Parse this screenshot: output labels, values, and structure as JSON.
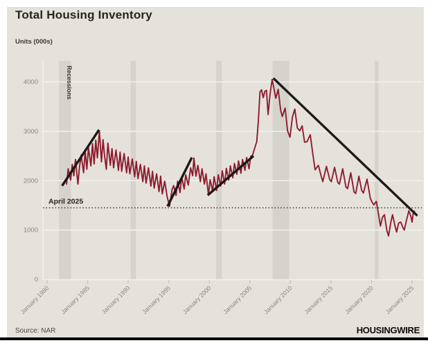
{
  "page": {
    "title": "Total Housing Inventory",
    "units_label": "Units (000s)",
    "source": "Source: NAR",
    "brand": "HOUSINGWIRE"
  },
  "colors": {
    "card_background": "#e5e2dc",
    "recession_band": "#d6d3cd",
    "gridline": "#f3f1ed",
    "tick": "#c6c3bd",
    "axis_text": "#8a8781",
    "series_red": "#8e1b2e",
    "trend_black": "#1b1a18",
    "reference_dotted": "#43413d",
    "annotation_text": "#26241f",
    "bottom_bar": "#000000"
  },
  "chart_data": {
    "type": "line",
    "title": "Total Housing Inventory",
    "ylabel": "Units (000s)",
    "xlabel": "",
    "x_domain": [
      1980,
      2025.5
    ],
    "ylim": [
      0,
      4400
    ],
    "grid": "horizontal",
    "legend": "none",
    "y_ticks": [
      "0",
      "1000",
      "2000",
      "3000",
      "4000"
    ],
    "y_tick_values": [
      0,
      1000,
      2000,
      3000,
      4000
    ],
    "x_ticks": [
      {
        "year": 1980,
        "label": "January 1980"
      },
      {
        "year": 1985,
        "label": "January 1985"
      },
      {
        "year": 1990,
        "label": "January 1990"
      },
      {
        "year": 1995,
        "label": "January 1995"
      },
      {
        "year": 2000,
        "label": "January 2000"
      },
      {
        "year": 2005,
        "label": "January 2005"
      },
      {
        "year": 2010,
        "label": "January 2010"
      },
      {
        "year": 2015,
        "label": "January 2015"
      },
      {
        "year": 2020,
        "label": "January 2020"
      },
      {
        "year": 2025,
        "label": "January 2025"
      }
    ],
    "recessions_label": "Recessions",
    "recession_bands": [
      [
        1981.45,
        1982.95
      ],
      [
        1990.3,
        1990.95
      ],
      [
        2000.85,
        2001.55
      ],
      [
        2007.8,
        2009.85
      ],
      [
        2020.4,
        2020.85
      ]
    ],
    "reference_line": {
      "label": "April 2025",
      "value": 1450
    },
    "trend_lines": [
      {
        "name": "1982-1986 uptrend",
        "from": [
          1981.85,
          1895
        ],
        "to": [
          1986.4,
          3030
        ]
      },
      {
        "name": "1995-1998 uptrend",
        "from": [
          1994.85,
          1480
        ],
        "to": [
          1997.85,
          2470
        ]
      },
      {
        "name": "2000-2005 uptrend",
        "from": [
          1999.8,
          1705
        ],
        "to": [
          2005.45,
          2500
        ]
      },
      {
        "name": "2007-2025 downtrend",
        "from": [
          2007.9,
          4075
        ],
        "to": [
          2025.65,
          1290
        ]
      }
    ],
    "series": [
      {
        "name": "Total housing inventory (000s)",
        "points": [
          [
            1982.4,
            1930
          ],
          [
            1982.6,
            2240
          ],
          [
            1982.9,
            2010
          ],
          [
            1983.1,
            2330
          ],
          [
            1983.3,
            2100
          ],
          [
            1983.5,
            2430
          ],
          [
            1983.8,
            1930
          ],
          [
            1984.0,
            2280
          ],
          [
            1984.2,
            2520
          ],
          [
            1984.5,
            2160
          ],
          [
            1984.7,
            2600
          ],
          [
            1984.9,
            2230
          ],
          [
            1985.1,
            2670
          ],
          [
            1985.4,
            2300
          ],
          [
            1985.6,
            2750
          ],
          [
            1985.8,
            2340
          ],
          [
            1986.0,
            2820
          ],
          [
            1986.2,
            2460
          ],
          [
            1986.45,
            3010
          ],
          [
            1986.7,
            2380
          ],
          [
            1986.9,
            2830
          ],
          [
            1987.1,
            2490
          ],
          [
            1987.3,
            2230
          ],
          [
            1987.5,
            2760
          ],
          [
            1987.8,
            2310
          ],
          [
            1988.0,
            2650
          ],
          [
            1988.2,
            2260
          ],
          [
            1988.5,
            2620
          ],
          [
            1988.8,
            2210
          ],
          [
            1989.0,
            2580
          ],
          [
            1989.2,
            2190
          ],
          [
            1989.5,
            2550
          ],
          [
            1989.8,
            2160
          ],
          [
            1990.0,
            2480
          ],
          [
            1990.2,
            2140
          ],
          [
            1990.5,
            2440
          ],
          [
            1990.8,
            2080
          ],
          [
            1991.0,
            2390
          ],
          [
            1991.2,
            2040
          ],
          [
            1991.5,
            2330
          ],
          [
            1991.8,
            1980
          ],
          [
            1992.0,
            2300
          ],
          [
            1992.2,
            1950
          ],
          [
            1992.5,
            2260
          ],
          [
            1992.8,
            1890
          ],
          [
            1993.0,
            2190
          ],
          [
            1993.2,
            1850
          ],
          [
            1993.5,
            2140
          ],
          [
            1993.8,
            1780
          ],
          [
            1994.0,
            2090
          ],
          [
            1994.2,
            1730
          ],
          [
            1994.5,
            1990
          ],
          [
            1994.8,
            1680
          ],
          [
            1995.1,
            1480
          ],
          [
            1995.4,
            1810
          ],
          [
            1995.6,
            1900
          ],
          [
            1995.9,
            1700
          ],
          [
            1996.1,
            1990
          ],
          [
            1996.4,
            1760
          ],
          [
            1996.6,
            2080
          ],
          [
            1996.9,
            1830
          ],
          [
            1997.1,
            2120
          ],
          [
            1997.4,
            1910
          ],
          [
            1997.7,
            2260
          ],
          [
            1997.95,
            2100
          ],
          [
            1998.1,
            2460
          ],
          [
            1998.35,
            2090
          ],
          [
            1998.6,
            2310
          ],
          [
            1998.9,
            1980
          ],
          [
            1999.1,
            2240
          ],
          [
            1999.4,
            1930
          ],
          [
            1999.6,
            2140
          ],
          [
            1999.9,
            1710
          ],
          [
            2000.1,
            2020
          ],
          [
            2000.4,
            1790
          ],
          [
            2000.6,
            2080
          ],
          [
            2000.9,
            1800
          ],
          [
            2001.1,
            2120
          ],
          [
            2001.4,
            1890
          ],
          [
            2001.6,
            2200
          ],
          [
            2001.9,
            1930
          ],
          [
            2002.1,
            2250
          ],
          [
            2002.4,
            2010
          ],
          [
            2002.6,
            2300
          ],
          [
            2002.9,
            2060
          ],
          [
            2003.1,
            2350
          ],
          [
            2003.4,
            2130
          ],
          [
            2003.6,
            2400
          ],
          [
            2003.9,
            2150
          ],
          [
            2004.1,
            2430
          ],
          [
            2004.4,
            2210
          ],
          [
            2004.6,
            2470
          ],
          [
            2004.9,
            2240
          ],
          [
            2005.1,
            2490
          ],
          [
            2005.35,
            2520
          ],
          [
            2005.6,
            2660
          ],
          [
            2005.85,
            2790
          ],
          [
            2006.05,
            3200
          ],
          [
            2006.25,
            3800
          ],
          [
            2006.45,
            3840
          ],
          [
            2006.65,
            3680
          ],
          [
            2006.85,
            3810
          ],
          [
            2007.05,
            3830
          ],
          [
            2007.25,
            3340
          ],
          [
            2007.5,
            3760
          ],
          [
            2007.75,
            4050
          ],
          [
            2007.95,
            3890
          ],
          [
            2008.2,
            3670
          ],
          [
            2008.5,
            3850
          ],
          [
            2008.8,
            3430
          ],
          [
            2009.0,
            3300
          ],
          [
            2009.35,
            3470
          ],
          [
            2009.65,
            3010
          ],
          [
            2009.95,
            2880
          ],
          [
            2010.25,
            3290
          ],
          [
            2010.55,
            3450
          ],
          [
            2010.85,
            3070
          ],
          [
            2011.15,
            3010
          ],
          [
            2011.45,
            3110
          ],
          [
            2011.75,
            2780
          ],
          [
            2012.05,
            2790
          ],
          [
            2012.45,
            2930
          ],
          [
            2012.75,
            2560
          ],
          [
            2013.05,
            2220
          ],
          [
            2013.45,
            2310
          ],
          [
            2013.8,
            2090
          ],
          [
            2014.0,
            1980
          ],
          [
            2014.45,
            2290
          ],
          [
            2014.85,
            2020
          ],
          [
            2015.05,
            1980
          ],
          [
            2015.45,
            2270
          ],
          [
            2015.85,
            1960
          ],
          [
            2016.05,
            1930
          ],
          [
            2016.45,
            2240
          ],
          [
            2016.85,
            1870
          ],
          [
            2017.05,
            1840
          ],
          [
            2017.45,
            2160
          ],
          [
            2017.85,
            1770
          ],
          [
            2018.05,
            1740
          ],
          [
            2018.45,
            2090
          ],
          [
            2018.8,
            1800
          ],
          [
            2019.0,
            1750
          ],
          [
            2019.45,
            2030
          ],
          [
            2019.85,
            1650
          ],
          [
            2020.05,
            1570
          ],
          [
            2020.3,
            1510
          ],
          [
            2020.6,
            1580
          ],
          [
            2020.9,
            1290
          ],
          [
            2021.1,
            1080
          ],
          [
            2021.35,
            1260
          ],
          [
            2021.6,
            1310
          ],
          [
            2021.9,
            990
          ],
          [
            2022.1,
            880
          ],
          [
            2022.4,
            1170
          ],
          [
            2022.6,
            1310
          ],
          [
            2022.9,
            1080
          ],
          [
            2023.1,
            960
          ],
          [
            2023.35,
            1140
          ],
          [
            2023.6,
            1160
          ],
          [
            2023.9,
            1040
          ],
          [
            2024.05,
            1000
          ],
          [
            2024.3,
            1190
          ],
          [
            2024.6,
            1390
          ],
          [
            2024.85,
            1280
          ],
          [
            2025.0,
            1160
          ],
          [
            2025.15,
            1340
          ],
          [
            2025.3,
            1380
          ]
        ]
      }
    ]
  }
}
